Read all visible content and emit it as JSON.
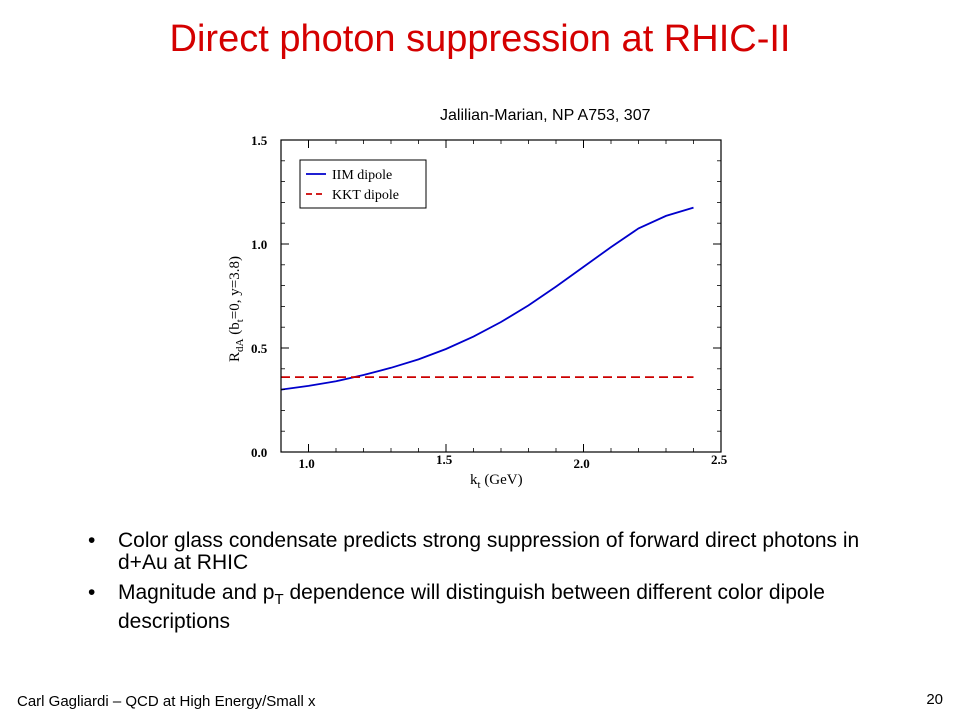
{
  "slide": {
    "title": "Direct photon suppression at RHIC-II",
    "citation": "Jalilian-Marian, NP A753, 307",
    "bullets": [
      "Color glass condensate predicts strong suppression of forward direct photons in d+Au at RHIC",
      "Magnitude and p_T dependence will distinguish between different color dipole descriptions"
    ],
    "bullet2_parts": {
      "before": "Magnitude and p",
      "sub": "T",
      "after": " dependence will distinguish between different color dipole descriptions"
    },
    "footer_left": "Carl Gagliardi – QCD at High Energy/Small x",
    "page_number": "20"
  },
  "chart_data": {
    "type": "line",
    "title": "",
    "xlabel": "k_t (GeV)",
    "ylabel": "R_dA (b_t=0, y=3.8)",
    "xlim": [
      0.9,
      2.5
    ],
    "ylim": [
      0.0,
      1.5
    ],
    "xticks": [
      1.0,
      1.5,
      2.0,
      2.5
    ],
    "xtick_labels": [
      "1.0",
      "1.5",
      "2.0",
      "2.5"
    ],
    "yticks": [
      0.0,
      0.5,
      1.0,
      1.5
    ],
    "ytick_labels": [
      "0.0",
      "0.5",
      "1.0",
      "1.5"
    ],
    "grid": false,
    "legend_position": "top-left",
    "series": [
      {
        "name": "IIM dipole",
        "color": "#0000cc",
        "style": "solid",
        "x": [
          0.9,
          1.0,
          1.1,
          1.2,
          1.3,
          1.4,
          1.5,
          1.6,
          1.7,
          1.8,
          1.9,
          2.0,
          2.1,
          2.2,
          2.3,
          2.4
        ],
        "y": [
          0.3,
          0.318,
          0.34,
          0.37,
          0.405,
          0.445,
          0.495,
          0.555,
          0.625,
          0.705,
          0.795,
          0.89,
          0.985,
          1.075,
          1.135,
          1.175
        ]
      },
      {
        "name": "KKT dipole",
        "color": "#cc0000",
        "style": "dashed",
        "x": [
          0.9,
          2.4
        ],
        "y": [
          0.36,
          0.36
        ]
      }
    ]
  }
}
